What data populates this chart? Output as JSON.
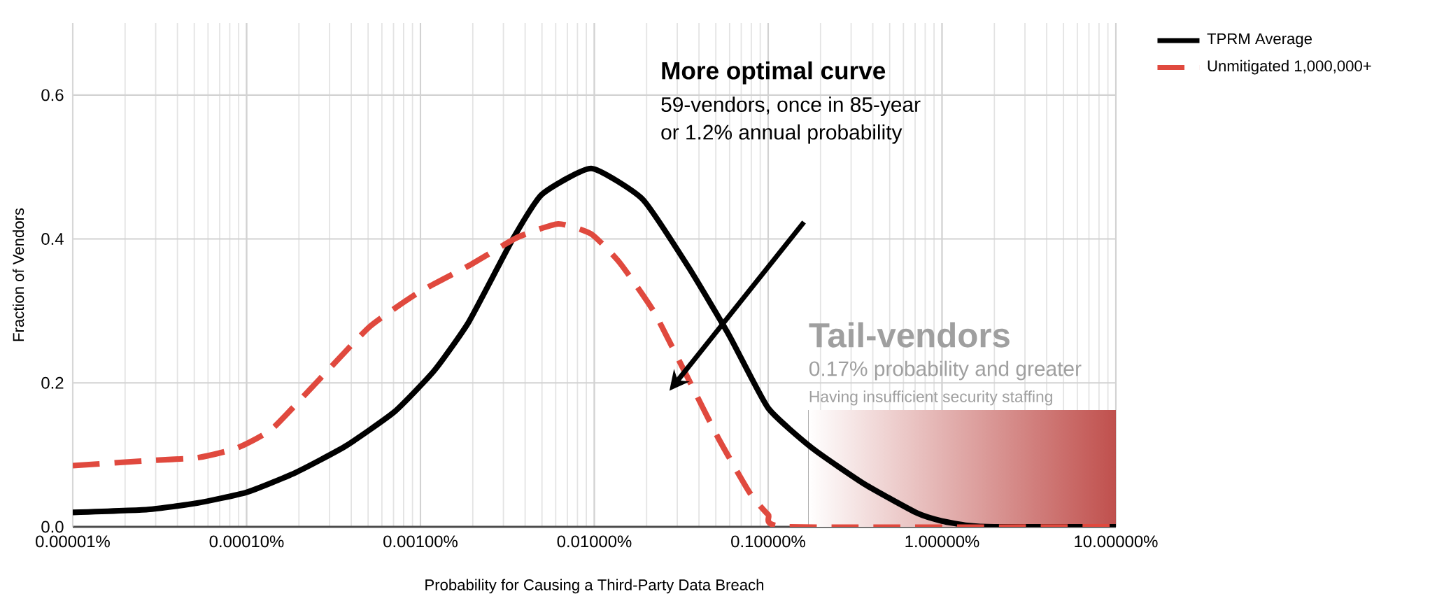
{
  "chart_data": {
    "type": "line",
    "xlabel": "Probability for Causing a Third-Party Data Breach",
    "ylabel": "Fraction of Vendors",
    "log": "x",
    "xlim": [
      1e-05,
      10
    ],
    "xticks": [
      {
        "value": 1e-05,
        "label": "0.00001%"
      },
      {
        "value": 0.0001,
        "label": "0.00010%"
      },
      {
        "value": 0.001,
        "label": "0.00100%"
      },
      {
        "value": 0.01,
        "label": "0.01000%"
      },
      {
        "value": 0.1,
        "label": "0.10000%"
      },
      {
        "value": 1,
        "label": "1.00000%"
      },
      {
        "value": 10,
        "label": "10.00000%"
      }
    ],
    "ylim": [
      0,
      0.7
    ],
    "yticks": [
      {
        "value": 0,
        "label": "0.0"
      },
      {
        "value": 0.2,
        "label": "0.2"
      },
      {
        "value": 0.4,
        "label": "0.4"
      },
      {
        "value": 0.6,
        "label": "0.6"
      }
    ],
    "grid": true,
    "legend": "top right",
    "series": [
      {
        "name": "TPRM Average",
        "color": "#000000",
        "line_style": "solid",
        "x": [
          1e-05,
          2.7e-05,
          5.2e-05,
          0.0001,
          0.00019,
          0.00037,
          0.00071,
          0.0012,
          0.0019,
          0.0034,
          0.005,
          0.0096,
          0.019,
          0.035,
          0.06,
          0.1,
          0.18,
          0.36,
          0.72,
          1.0,
          1.4,
          2.0,
          10
        ],
        "values": [
          0.02,
          0.024,
          0.033,
          0.048,
          0.075,
          0.112,
          0.16,
          0.217,
          0.285,
          0.4,
          0.462,
          0.498,
          0.455,
          0.36,
          0.265,
          0.165,
          0.109,
          0.059,
          0.019,
          0.008,
          0.002,
          0,
          0
        ]
      },
      {
        "name": "Unmitigated 1,000,000+",
        "color": "#e0493e",
        "line_style": "dashed",
        "x": [
          1e-05,
          2.7e-05,
          5.2e-05,
          8.7e-05,
          0.00014,
          0.00026,
          0.00051,
          0.00098,
          0.0019,
          0.0036,
          0.0062,
          0.0096,
          0.014,
          0.022,
          0.035,
          0.052,
          0.078,
          0.1,
          0.13,
          10
        ],
        "values": [
          0.085,
          0.092,
          0.096,
          0.109,
          0.136,
          0.204,
          0.278,
          0.326,
          0.363,
          0.402,
          0.421,
          0.407,
          0.367,
          0.299,
          0.204,
          0.122,
          0.048,
          0.017,
          0,
          0
        ]
      }
    ],
    "bands": [
      {
        "axis": "x",
        "from": 0.17,
        "to": 10,
        "label": "Tail-vendors",
        "color": "#c0504d"
      }
    ],
    "annotations": [
      "More optimal curve",
      "59-vendors, once in 85-year",
      "or 1.2% annual probability",
      "0.17% probability and greater",
      "Having insufficient security staffing"
    ]
  }
}
